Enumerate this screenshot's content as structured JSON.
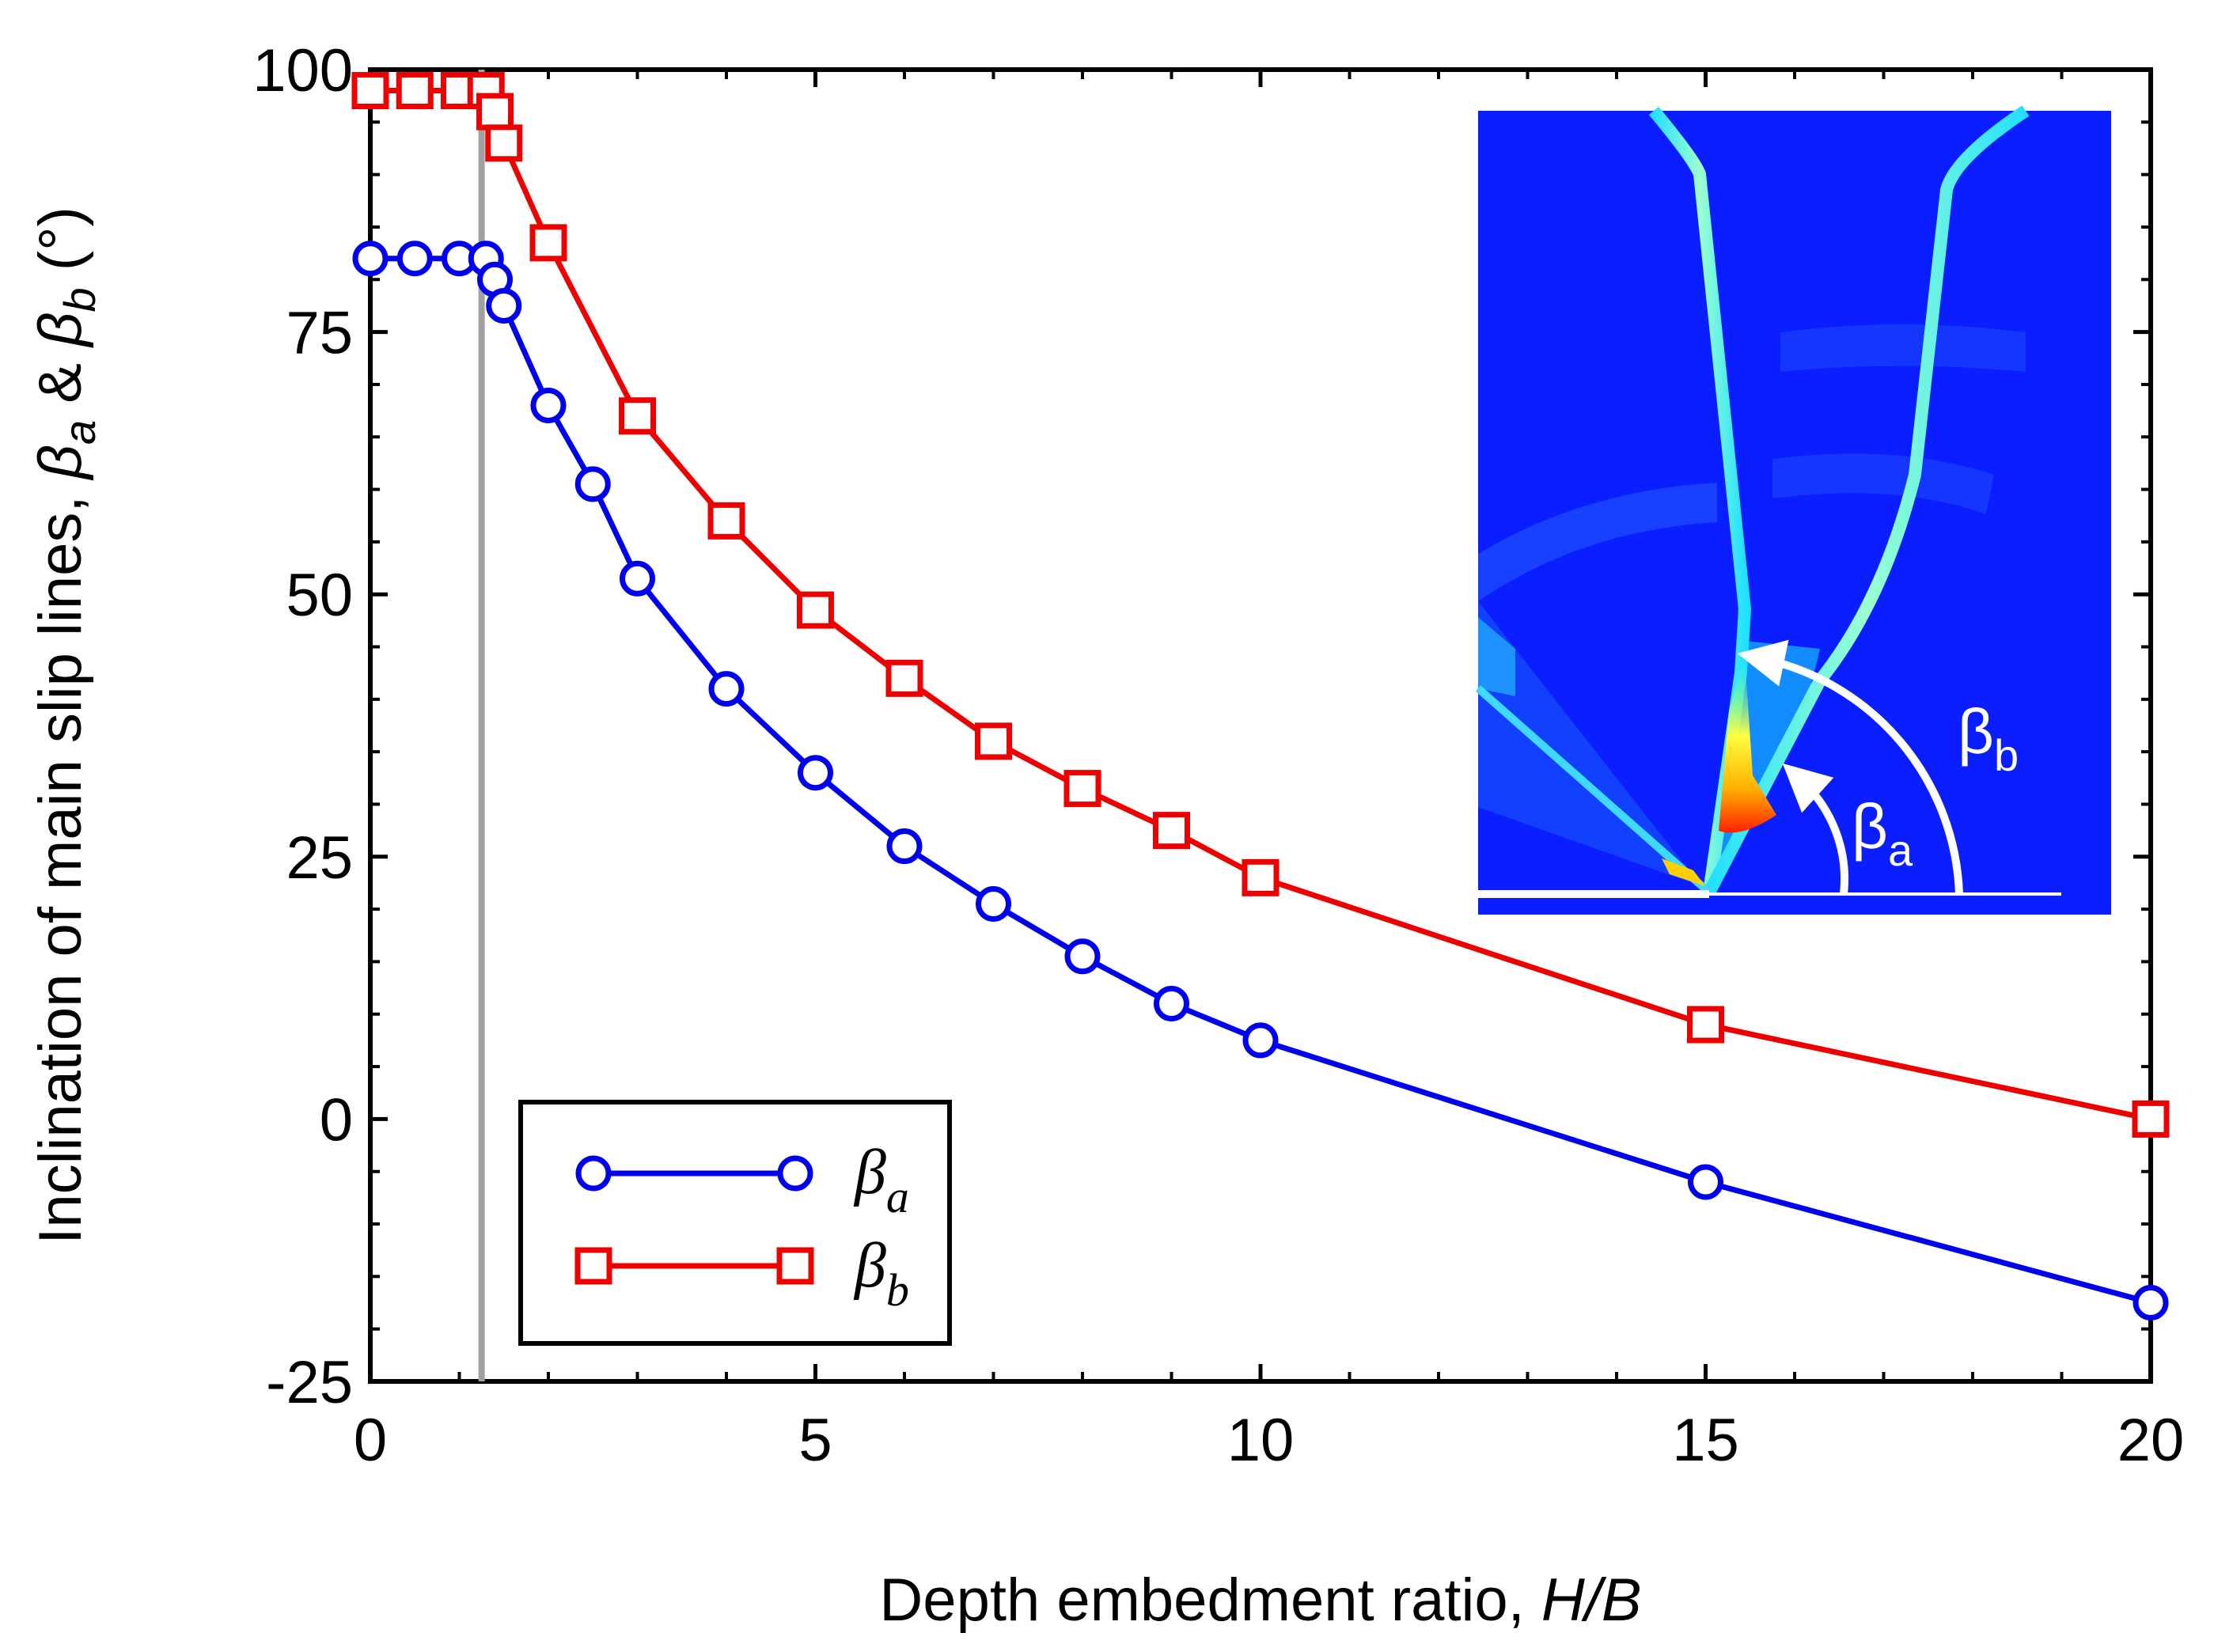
{
  "chart_data": {
    "type": "line",
    "title": "",
    "xlabel": "Depth embedment ratio, ",
    "xlabel_italic": "H/B",
    "ylabel": "Inclination of main slip lines, ",
    "ylabel_symbols": {
      "beta": "β",
      "a": "a",
      "amp": " & ",
      "b": "b",
      "unit": " (°)"
    },
    "xlim": [
      0,
      20
    ],
    "ylim": [
      -25,
      100
    ],
    "xticks": [
      0,
      5,
      10,
      15,
      20
    ],
    "xtick_labels": [
      "0",
      "5",
      "10",
      "15",
      "20"
    ],
    "yticks": [
      -25,
      0,
      25,
      50,
      75,
      100
    ],
    "ytick_labels": [
      "-25",
      "0",
      "25",
      "50",
      "75",
      "100"
    ],
    "grid": false,
    "reference_line_x": 1.25,
    "legend_position": "bottom-left",
    "series": [
      {
        "name": "βa",
        "symbol": "β",
        "subscript": "a",
        "color": "#0000ee",
        "marker": "circle",
        "x": [
          0,
          0.5,
          1,
          1.3,
          1.4,
          1.5,
          2,
          2.5,
          3,
          4,
          5,
          6,
          7,
          8,
          9,
          10,
          15,
          20
        ],
        "y": [
          82,
          82,
          82,
          82,
          80,
          77.5,
          68,
          60.5,
          51.5,
          41,
          33,
          26,
          20.5,
          15.5,
          11,
          7.5,
          -6,
          -17.5
        ]
      },
      {
        "name": "βb",
        "symbol": "β",
        "subscript": "b",
        "color": "#ee0000",
        "marker": "square",
        "x": [
          0,
          0.5,
          1,
          1.3,
          1.4,
          1.5,
          2,
          3,
          4,
          5,
          6,
          7,
          8,
          9,
          10,
          15,
          20
        ],
        "y": [
          98,
          98,
          98,
          98,
          96,
          93,
          83.5,
          67,
          57,
          48.5,
          42,
          36,
          31.5,
          27.5,
          23,
          9,
          0
        ]
      }
    ],
    "inset": {
      "description_free": true,
      "label_a": {
        "symbol": "β",
        "subscript": "a"
      },
      "label_b": {
        "symbol": "β",
        "subscript": "b"
      }
    }
  }
}
